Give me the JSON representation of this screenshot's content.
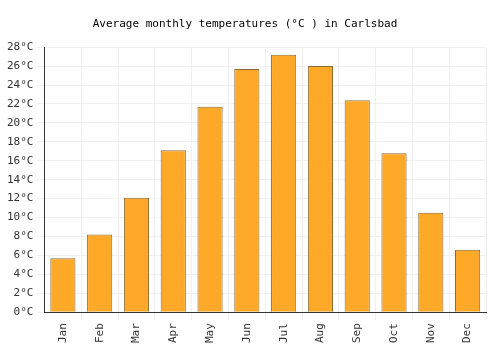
{
  "chart_data": {
    "type": "bar",
    "title": "Average monthly temperatures (°C ) in Carlsbad",
    "categories": [
      "Jan",
      "Feb",
      "Mar",
      "Apr",
      "May",
      "Jun",
      "Jul",
      "Aug",
      "Sep",
      "Oct",
      "Nov",
      "Dec"
    ],
    "values": [
      5.7,
      8.2,
      12.1,
      17.1,
      21.7,
      25.7,
      27.2,
      26.0,
      22.4,
      16.8,
      10.5,
      6.6
    ],
    "color": "#ffa929",
    "ylim": [
      0,
      28
    ],
    "yticks": [
      {
        "value": 0,
        "label": "0°C"
      },
      {
        "value": 2,
        "label": "2°C"
      },
      {
        "value": 4,
        "label": "4°C"
      },
      {
        "value": 6,
        "label": "6°C"
      },
      {
        "value": 8,
        "label": "8°C"
      },
      {
        "value": 10,
        "label": "10°C"
      },
      {
        "value": 12,
        "label": "12°C"
      },
      {
        "value": 14,
        "label": "14°C"
      },
      {
        "value": 16,
        "label": "16°C"
      },
      {
        "value": 18,
        "label": "18°C"
      },
      {
        "value": 20,
        "label": "20°C"
      },
      {
        "value": 22,
        "label": "22°C"
      },
      {
        "value": 24,
        "label": "24°C"
      },
      {
        "value": 26,
        "label": "26°C"
      },
      {
        "value": 28,
        "label": "28°C"
      }
    ],
    "grid": true
  }
}
